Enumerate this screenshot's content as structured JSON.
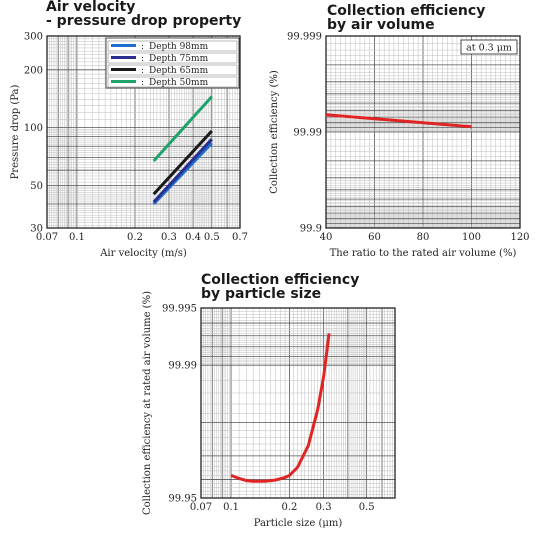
{
  "chart_data": [
    {
      "type": "line",
      "title": "Air velocity\n- pressure drop property",
      "xlabel": "Air velocity (m/s)",
      "ylabel": "Pressure drop (Pa)",
      "xscale": "log",
      "yscale": "log",
      "xlim": [
        0.07,
        0.7
      ],
      "ylim": [
        30,
        300
      ],
      "xticks": [
        0.07,
        0.1,
        0.2,
        0.3,
        0.4,
        0.5,
        0.7
      ],
      "xtick_labels": [
        "0.07",
        "0.1",
        "0.2",
        "0.3",
        "0.4",
        "0.5",
        "0.7"
      ],
      "yticks": [
        30,
        50,
        100,
        200,
        300
      ],
      "ytick_labels": [
        "30",
        "50",
        "100",
        "200",
        "300"
      ],
      "grid": true,
      "legend_position": "top-right",
      "series": [
        {
          "name": "Depth 98mm",
          "color": "#1e6fd0",
          "x": [
            0.25,
            0.5
          ],
          "y": [
            40,
            83
          ]
        },
        {
          "name": "Depth 75mm",
          "color": "#2a2f8f",
          "x": [
            0.25,
            0.5
          ],
          "y": [
            41,
            87
          ]
        },
        {
          "name": "Depth 65mm",
          "color": "#1a1a1a",
          "x": [
            0.25,
            0.5
          ],
          "y": [
            45,
            96
          ]
        },
        {
          "name": "Depth 50mm",
          "color": "#1ea36a",
          "x": [
            0.25,
            0.5
          ],
          "y": [
            67,
            145
          ]
        }
      ]
    },
    {
      "type": "line",
      "title": "Collection efficiency\nby air volume",
      "xlabel": "The ratio to the rated air volume (%)",
      "ylabel": "Collection efficiency (%)",
      "xscale": "linear",
      "yscale": "log-penetration",
      "xlim": [
        40,
        120
      ],
      "ylim": [
        99.9,
        99.999
      ],
      "xticks": [
        40,
        60,
        80,
        100,
        120
      ],
      "xtick_labels": [
        "40",
        "60",
        "80",
        "100",
        "120"
      ],
      "yticks": [
        99.9,
        99.99,
        99.999
      ],
      "ytick_labels": [
        "99.9",
        "99.99",
        "99.999"
      ],
      "grid": true,
      "annotation": "at 0.3 μm",
      "series": [
        {
          "color": "#e02424",
          "x": [
            40,
            100
          ],
          "y": [
            99.9934,
            99.9912
          ]
        }
      ]
    },
    {
      "type": "line",
      "title": "Collection efficiency\nby particle size",
      "xlabel": "Particle size (μm)",
      "ylabel": "Collection efficiency at rated air volume (%)",
      "xscale": "log",
      "yscale": "log-penetration",
      "xlim": [
        0.07,
        0.7
      ],
      "ylim": [
        99.95,
        99.995
      ],
      "xticks": [
        0.07,
        0.1,
        0.2,
        0.3,
        0.5
      ],
      "xtick_labels": [
        "0.07",
        "0.1",
        "0.2",
        "0.3",
        "0.5"
      ],
      "yticks": [
        99.95,
        99.99,
        99.995
      ],
      "ytick_labels": [
        "99.95",
        "99.99",
        "99.995"
      ],
      "grid": true,
      "series": [
        {
          "color": "#e02424",
          "x": [
            0.1,
            0.11,
            0.12,
            0.13,
            0.15,
            0.17,
            0.19,
            0.2,
            0.22,
            0.25,
            0.28,
            0.3,
            0.32
          ],
          "y": [
            99.962,
            99.9605,
            99.9595,
            99.9592,
            99.9592,
            99.9598,
            99.961,
            99.962,
            99.9655,
            99.9735,
            99.983,
            99.9885,
            99.9932
          ]
        }
      ]
    }
  ]
}
